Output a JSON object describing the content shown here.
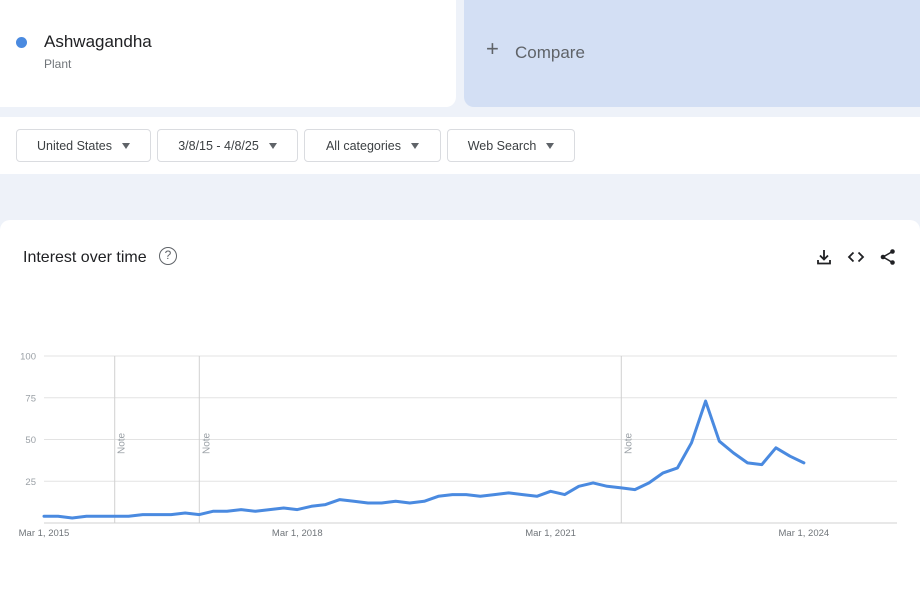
{
  "term": {
    "name": "Ashwagandha",
    "type": "Plant",
    "color": "#4a8ae0"
  },
  "compare": {
    "plus": "+",
    "label": "Compare"
  },
  "filters": [
    {
      "label": "United States"
    },
    {
      "label": "3/8/15 - 4/8/25"
    },
    {
      "label": "All categories"
    },
    {
      "label": "Web Search"
    }
  ],
  "chart_header": {
    "title": "Interest over time",
    "help_glyph": "?"
  },
  "toolbar": {
    "icons": [
      "download-icon",
      "embed-code-icon",
      "share-icon"
    ]
  },
  "chart_data": {
    "type": "line",
    "title": "Interest over time",
    "xlabel": "",
    "ylabel": "",
    "ylim": [
      0,
      100
    ],
    "yticks": [
      25,
      50,
      75,
      100
    ],
    "xticks": [
      {
        "label": "Mar 1, 2015",
        "date": "2015-03-01"
      },
      {
        "label": "Mar 1, 2018",
        "date": "2018-03-01"
      },
      {
        "label": "Mar 1, 2021",
        "date": "2021-03-01"
      },
      {
        "label": "Mar 1, 2024",
        "date": "2024-03-01"
      }
    ],
    "x_range": [
      "2015-03-01",
      "2025-04-08"
    ],
    "grid": true,
    "notes": [
      {
        "date": "2016-01-01",
        "label": "Note"
      },
      {
        "date": "2017-01-01",
        "label": "Note"
      },
      {
        "date": "2022-01-01",
        "label": "Note"
      }
    ],
    "series": [
      {
        "color": "#4a8ae0",
        "points": [
          [
            "2015-03-01",
            4
          ],
          [
            "2015-05-01",
            4
          ],
          [
            "2015-07-01",
            3
          ],
          [
            "2015-09-01",
            4
          ],
          [
            "2015-11-01",
            4
          ],
          [
            "2016-01-01",
            4
          ],
          [
            "2016-03-01",
            4
          ],
          [
            "2016-05-01",
            5
          ],
          [
            "2016-07-01",
            5
          ],
          [
            "2016-09-01",
            5
          ],
          [
            "2016-11-01",
            6
          ],
          [
            "2017-01-01",
            5
          ],
          [
            "2017-03-01",
            7
          ],
          [
            "2017-05-01",
            7
          ],
          [
            "2017-07-01",
            8
          ],
          [
            "2017-09-01",
            7
          ],
          [
            "2017-11-01",
            8
          ],
          [
            "2018-01-01",
            9
          ],
          [
            "2018-03-01",
            8
          ],
          [
            "2018-05-01",
            10
          ],
          [
            "2018-07-01",
            11
          ],
          [
            "2018-09-01",
            14
          ],
          [
            "2018-11-01",
            13
          ],
          [
            "2019-01-01",
            12
          ],
          [
            "2019-03-01",
            12
          ],
          [
            "2019-05-01",
            13
          ],
          [
            "2019-07-01",
            12
          ],
          [
            "2019-09-01",
            13
          ],
          [
            "2019-11-01",
            16
          ],
          [
            "2020-01-01",
            17
          ],
          [
            "2020-03-01",
            17
          ],
          [
            "2020-05-01",
            16
          ],
          [
            "2020-07-01",
            17
          ],
          [
            "2020-09-01",
            18
          ],
          [
            "2020-11-01",
            17
          ],
          [
            "2021-01-01",
            16
          ],
          [
            "2021-03-01",
            19
          ],
          [
            "2021-05-01",
            17
          ],
          [
            "2021-07-01",
            22
          ],
          [
            "2021-09-01",
            24
          ],
          [
            "2021-11-01",
            22
          ],
          [
            "2022-01-01",
            21
          ],
          [
            "2022-03-01",
            20
          ],
          [
            "2022-05-01",
            24
          ],
          [
            "2022-07-01",
            30
          ],
          [
            "2022-09-01",
            33
          ],
          [
            "2022-11-01",
            48
          ],
          [
            "2023-01-01",
            73
          ],
          [
            "2023-03-01",
            49
          ],
          [
            "2023-05-01",
            42
          ],
          [
            "2023-07-01",
            36
          ],
          [
            "2023-09-01",
            35
          ],
          [
            "2023-11-01",
            45
          ],
          [
            "2024-01-01",
            40
          ],
          [
            "2024-03-01",
            36
          ]
        ]
      }
    ]
  }
}
